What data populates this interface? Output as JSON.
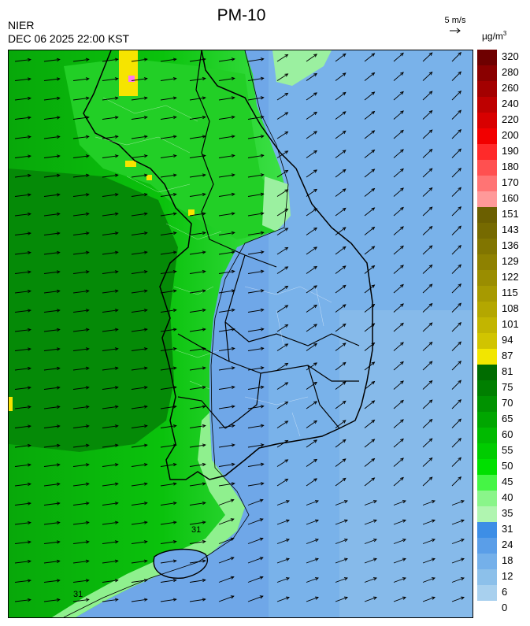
{
  "header": {
    "agency": "NIER",
    "datetime": "DEC 06 2025 22:00 KST",
    "title": "PM-10",
    "wind_scale_label": "5 m/s",
    "unit_prefix": "µg/m",
    "unit_exp": "3"
  },
  "map": {
    "contour_labels": [
      "31",
      "31"
    ],
    "wind_direction": "east-northeast"
  },
  "colorbar": {
    "labels": [
      "320",
      "280",
      "260",
      "240",
      "220",
      "200",
      "190",
      "180",
      "170",
      "160",
      "151",
      "143",
      "136",
      "129",
      "122",
      "115",
      "108",
      "101",
      "94",
      "87",
      "81",
      "75",
      "70",
      "65",
      "60",
      "55",
      "50",
      "45",
      "40",
      "35",
      "31",
      "24",
      "18",
      "12",
      "6",
      "0"
    ],
    "colors": [
      "#6e0000",
      "#8a0000",
      "#a30000",
      "#be0000",
      "#d80000",
      "#f20000",
      "#ff2a2a",
      "#ff5050",
      "#ff7474",
      "#ff9999",
      "#6b5f00",
      "#766a00",
      "#817500",
      "#8e8100",
      "#9a8d00",
      "#a79a00",
      "#b4a700",
      "#c2b500",
      "#d1c400",
      "#f2e600",
      "#006c00",
      "#007f00",
      "#009200",
      "#00a600",
      "#00ba00",
      "#00cc00",
      "#00e000",
      "#45f545",
      "#8af58a",
      "#b0f5b0",
      "#3d8ee6",
      "#5a9ee8",
      "#74b0ea",
      "#8cc0ea",
      "#a8d0ee"
    ]
  }
}
